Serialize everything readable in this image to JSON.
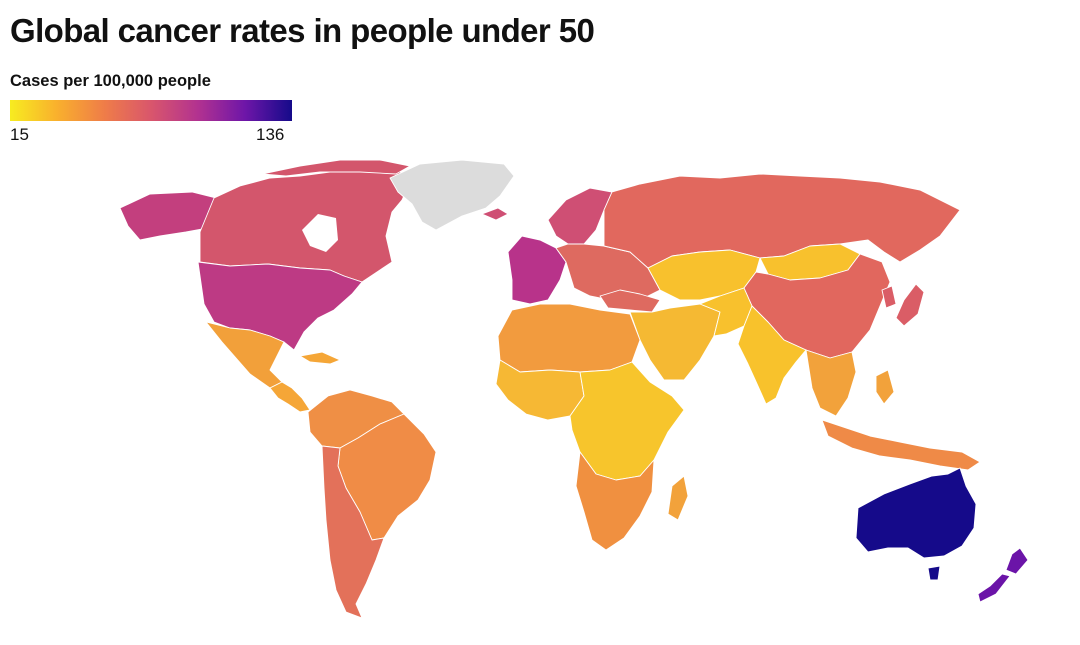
{
  "header": {
    "title": "Global cancer rates in people under 50"
  },
  "legend": {
    "title": "Cases per 100,000 people",
    "min_label": "15",
    "max_label": "136",
    "min_value": 15,
    "max_value": 136,
    "gradient_colors": [
      "#f7ec20",
      "#f9b02d",
      "#ef7d48",
      "#d9566c",
      "#b23290",
      "#6e16a8",
      "#150a8a"
    ],
    "no_data_color": "#dcdcdc"
  },
  "map": {
    "regions": [
      {
        "name": "Alaska (USA)",
        "color": "#c33f7e"
      },
      {
        "name": "Canada",
        "color": "#d3566c"
      },
      {
        "name": "United States",
        "color": "#bd3a84"
      },
      {
        "name": "Greenland",
        "color": "#dcdcdc"
      },
      {
        "name": "Mexico",
        "color": "#f2a03a"
      },
      {
        "name": "Central America & Caribbean",
        "color": "#f5a637"
      },
      {
        "name": "South America (north)",
        "color": "#ef8f45"
      },
      {
        "name": "Brazil",
        "color": "#f08c46"
      },
      {
        "name": "Argentina & Chile",
        "color": "#e3715a"
      },
      {
        "name": "Northern Europe",
        "color": "#cf4f74"
      },
      {
        "name": "Western Europe",
        "color": "#b8338a"
      },
      {
        "name": "Eastern Europe",
        "color": "#de6a60"
      },
      {
        "name": "Russia",
        "color": "#e1685e"
      },
      {
        "name": "Central Asia",
        "color": "#f8c12d"
      },
      {
        "name": "Mongolia",
        "color": "#f8c12d"
      },
      {
        "name": "China",
        "color": "#e1675e"
      },
      {
        "name": "Middle East",
        "color": "#f5b933"
      },
      {
        "name": "India",
        "color": "#f8c22c"
      },
      {
        "name": "Southeast Asia",
        "color": "#f2a23b"
      },
      {
        "name": "Japan",
        "color": "#da5d66"
      },
      {
        "name": "North Africa",
        "color": "#f29b3e"
      },
      {
        "name": "West Africa",
        "color": "#f6b834"
      },
      {
        "name": "Central & East Africa",
        "color": "#f7c52c"
      },
      {
        "name": "Southern Africa",
        "color": "#f09040"
      },
      {
        "name": "Madagascar",
        "color": "#f2a23b"
      },
      {
        "name": "Indonesia & Papua New Guinea",
        "color": "#ef8a47"
      },
      {
        "name": "Australia",
        "color": "#150a8a"
      },
      {
        "name": "New Zealand",
        "color": "#6b14a8"
      }
    ]
  }
}
